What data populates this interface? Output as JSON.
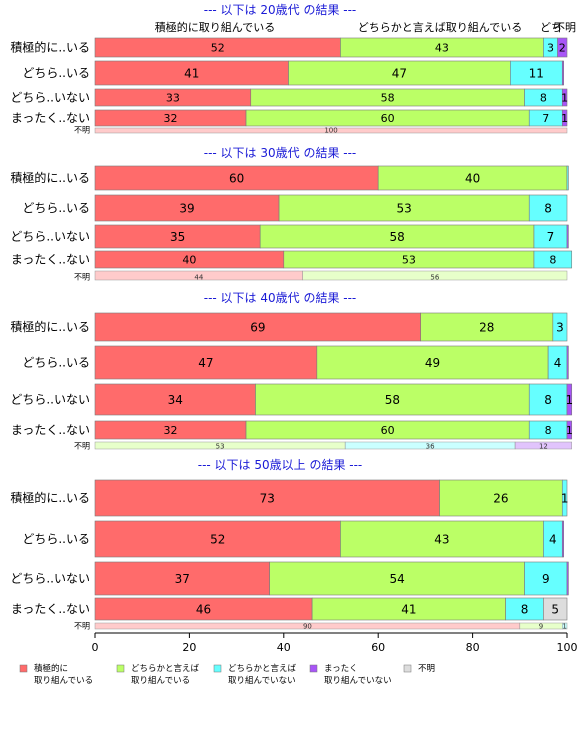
{
  "chart_data": {
    "type": "bar",
    "stacked": true,
    "orientation": "horizontal",
    "xlim": [
      0,
      100
    ],
    "x_ticks": [
      "0",
      "20",
      "40",
      "60",
      "80",
      "100"
    ],
    "top_labels": [
      {
        "text": "積極的に取り組んでいる"
      },
      {
        "text": "どちらかと言えば取り組んでいる"
      },
      {
        "text": "どち"
      },
      {
        "text": "不明"
      }
    ],
    "series": [
      {
        "name": "積極的に\n取り組んでいる",
        "color": "#ff6b6b"
      },
      {
        "name": "どちらかと言えば\n取り組んでいる",
        "color": "#bbff66"
      },
      {
        "name": "どちらかと言えば\n取り組んでいない",
        "color": "#66ffff"
      },
      {
        "name": "まったく\n取り組んでいない",
        "color": "#a855f7"
      },
      {
        "name": "不明",
        "color": "#dddddd"
      }
    ],
    "groups": [
      {
        "title": "--- 以下は 20歳代 の結果 ---",
        "rows": [
          {
            "label": "積極的に..いる",
            "values": [
              52,
              43,
              3,
              2,
              0
            ]
          },
          {
            "label": "どちら..いる",
            "values": [
              41,
              47,
              11,
              0.3,
              0
            ]
          },
          {
            "label": "どちら..いない",
            "values": [
              33,
              58,
              8,
              1,
              0
            ]
          },
          {
            "label": "まったく..ない",
            "values": [
              32,
              60,
              7,
              1,
              0
            ]
          }
        ],
        "unknown": {
          "label": "不明",
          "values": [
            100,
            0,
            0,
            0,
            0
          ],
          "texts": [
            "100"
          ]
        }
      },
      {
        "title": "--- 以下は 30歳代 の結果 ---",
        "rows": [
          {
            "label": "積極的に..いる",
            "values": [
              60,
              40,
              0.3,
              0,
              0
            ]
          },
          {
            "label": "どちら..いる",
            "values": [
              39,
              53,
              8,
              0,
              0
            ]
          },
          {
            "label": "どちら..いない",
            "values": [
              35,
              58,
              7,
              0.3,
              0
            ]
          },
          {
            "label": "まったく..ない",
            "values": [
              40,
              53,
              8,
              0,
              0
            ]
          }
        ],
        "unknown": {
          "label": "不明",
          "values": [
            44,
            56,
            0,
            0,
            0
          ],
          "texts": [
            "44",
            "56"
          ]
        }
      },
      {
        "title": "--- 以下は 40歳代 の結果 ---",
        "rows": [
          {
            "label": "積極的に..いる",
            "values": [
              69,
              28,
              3,
              0,
              0
            ]
          },
          {
            "label": "どちら..いる",
            "values": [
              47,
              49,
              4,
              0.3,
              0
            ]
          },
          {
            "label": "どちら..いない",
            "values": [
              34,
              58,
              8,
              1,
              0
            ]
          },
          {
            "label": "まったく..ない",
            "values": [
              32,
              60,
              8,
              1,
              0
            ]
          }
        ],
        "unknown": {
          "label": "不明",
          "values": [
            0,
            53,
            36,
            12,
            0
          ],
          "texts": [
            "53",
            "36",
            "12"
          ]
        }
      },
      {
        "title": "--- 以下は 50歳以上 の結果 ---",
        "rows": [
          {
            "label": "積極的に..いる",
            "values": [
              73,
              26,
              1,
              0,
              0
            ]
          },
          {
            "label": "どちら..いる",
            "values": [
              52,
              43,
              4,
              0.3,
              0
            ]
          },
          {
            "label": "どちら..いない",
            "values": [
              37,
              54,
              9,
              0.3,
              0
            ]
          },
          {
            "label": "まったく..ない",
            "values": [
              46,
              41,
              8,
              0,
              5
            ]
          }
        ],
        "unknown": {
          "label": "不明",
          "values": [
            90,
            9,
            1,
            0,
            0
          ],
          "texts": [
            "90",
            "9",
            "1"
          ]
        }
      }
    ]
  }
}
